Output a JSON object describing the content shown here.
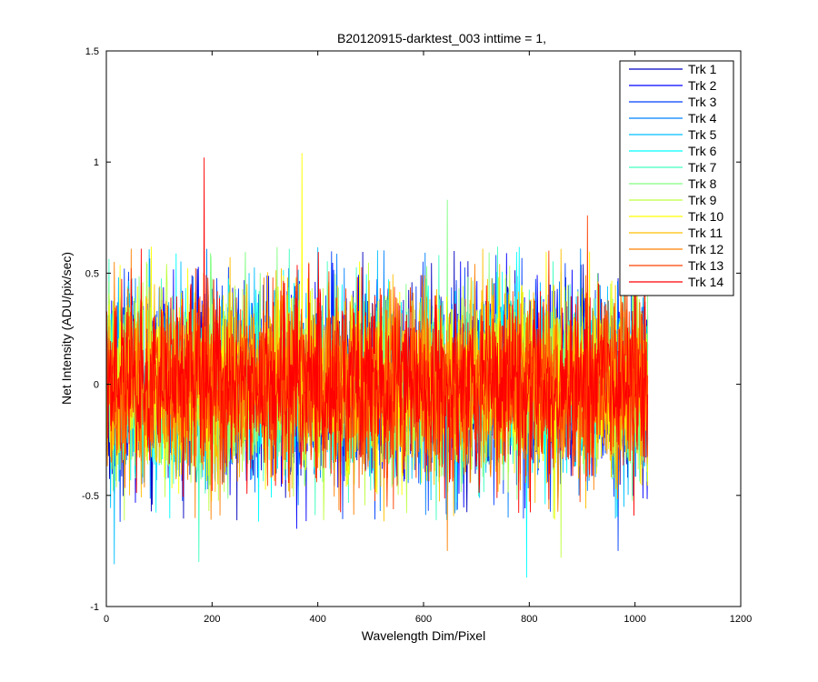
{
  "chart_data": {
    "type": "line",
    "title": "B20120915-darktest_003 inttime = 1,",
    "xlabel": "Wavelength Dim/Pixel",
    "ylabel": "Net Intensity (ADU/pix/sec)",
    "xlim": [
      0,
      1200
    ],
    "ylim": [
      -1,
      1.5
    ],
    "xticks": [
      0,
      200,
      400,
      600,
      800,
      1000,
      1200
    ],
    "xtick_labels": [
      "0",
      "200",
      "400",
      "600",
      "800",
      "1000",
      "1200"
    ],
    "yticks": [
      -1,
      -0.5,
      0,
      0.5,
      1,
      1.5
    ],
    "ytick_labels": [
      "-1",
      "-0.5",
      "0",
      "0.5",
      "1",
      "1.5"
    ],
    "grid": false,
    "legend_position": "top-right",
    "x_range": [
      0,
      1024
    ],
    "series": [
      {
        "name": "Trk 1",
        "color": "#0000bf",
        "mean": 0.0,
        "stdev": 0.2,
        "peak": {
          "x": 15,
          "y": -0.49
        }
      },
      {
        "name": "Trk 2",
        "color": "#0000ff",
        "mean": 0.0,
        "stdev": 0.2,
        "peak": {
          "x": 360,
          "y": -0.65
        }
      },
      {
        "name": "Trk 3",
        "color": "#0040ff",
        "mean": 0.0,
        "stdev": 0.2,
        "peak": {
          "x": 968,
          "y": -0.75
        }
      },
      {
        "name": "Trk 4",
        "color": "#0080ff",
        "mean": 0.0,
        "stdev": 0.2,
        "peak": {
          "x": 760,
          "y": -0.6
        }
      },
      {
        "name": "Trk 5",
        "color": "#00bfff",
        "mean": 0.0,
        "stdev": 0.2,
        "peak": {
          "x": 15,
          "y": -0.81
        }
      },
      {
        "name": "Trk 6",
        "color": "#00ffff",
        "mean": 0.0,
        "stdev": 0.2,
        "peak": {
          "x": 795,
          "y": -0.87
        }
      },
      {
        "name": "Trk 7",
        "color": "#40ffbf",
        "mean": 0.0,
        "stdev": 0.2,
        "peak": {
          "x": 175,
          "y": -0.8
        }
      },
      {
        "name": "Trk 8",
        "color": "#80ff80",
        "mean": 0.0,
        "stdev": 0.2,
        "peak": {
          "x": 645,
          "y": 0.83
        }
      },
      {
        "name": "Trk 9",
        "color": "#bfff40",
        "mean": 0.0,
        "stdev": 0.2,
        "peak": {
          "x": 860,
          "y": -0.78
        }
      },
      {
        "name": "Trk 10",
        "color": "#ffff00",
        "mean": 0.0,
        "stdev": 0.2,
        "peak": {
          "x": 370,
          "y": 1.04
        }
      },
      {
        "name": "Trk 11",
        "color": "#ffbf00",
        "mean": 0.0,
        "stdev": 0.2,
        "peak": {
          "x": 712,
          "y": 0.61
        }
      },
      {
        "name": "Trk 12",
        "color": "#ff8000",
        "mean": 0.0,
        "stdev": 0.2,
        "peak": {
          "x": 645,
          "y": -0.75
        }
      },
      {
        "name": "Trk 13",
        "color": "#ff4000",
        "mean": 0.0,
        "stdev": 0.2,
        "peak": {
          "x": 910,
          "y": 0.76
        }
      },
      {
        "name": "Trk 14",
        "color": "#ff0000",
        "mean": 0.0,
        "stdev": 0.2,
        "peak": {
          "x": 185,
          "y": 1.02
        }
      }
    ]
  }
}
